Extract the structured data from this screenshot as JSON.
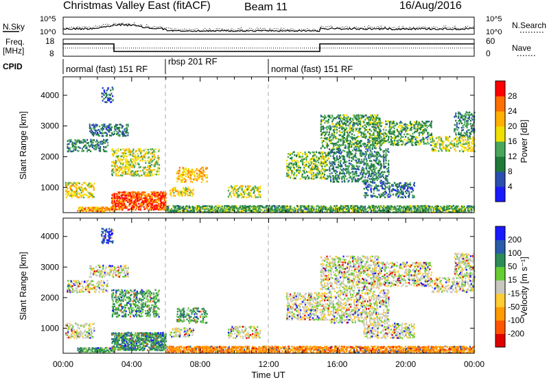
{
  "header": {
    "title": "Christmas Valley East (fitACF)",
    "beam": "Beam 11",
    "date": "16/Aug/2016"
  },
  "top_panels": {
    "nsky": {
      "label": "N.Sky",
      "left_ticks": [
        "10^5",
        "10^0"
      ],
      "right_label": "N.Search",
      "right_ticks": [
        "10^5",
        "10^0"
      ]
    },
    "freq": {
      "label_line1": "Freq.",
      "label_line2": "[MHz]",
      "left_ticks": [
        "18",
        "8"
      ],
      "right_label": "Nave",
      "right_ticks": [
        "60",
        "0"
      ]
    },
    "cpid": {
      "label": "CPID",
      "segments": [
        {
          "start_hour": 0,
          "end_hour": 6,
          "text": "normal (fast) 151 RF"
        },
        {
          "start_hour": 6,
          "end_hour": 12,
          "text": "rbsp 201 RF"
        },
        {
          "start_hour": 12,
          "end_hour": 24,
          "text": "normal (fast) 151 RF"
        }
      ]
    }
  },
  "colors": {
    "power_scale": [
      "#1a1aff",
      "#2a4fb0",
      "#1f7a3a",
      "#4aa65a",
      "#f0e000",
      "#ffb000",
      "#ff7000",
      "#ff0000"
    ],
    "velocity_scale": [
      "#e00000",
      "#ff5500",
      "#ff9a00",
      "#ffcc33",
      "#c8c8c0",
      "#66cc33",
      "#2e8b57",
      "#2a5caa",
      "#1a1aff"
    ]
  },
  "chart_data": [
    {
      "type": "heatmap",
      "title": "",
      "xlabel": "Time UT",
      "ylabel": "Slant Range [km]",
      "x_range_hours": [
        0,
        24
      ],
      "xticks": [
        "00:00",
        "04:00",
        "08:00",
        "12:00",
        "16:00",
        "20:00",
        "00:00"
      ],
      "ylim": [
        180,
        4600
      ],
      "yticks": [
        1000,
        2000,
        3000,
        4000
      ],
      "colorbar": {
        "label": "Power [dB]",
        "ticks": [
          "4",
          "8",
          "12",
          "16",
          "20",
          "24",
          "28"
        ],
        "range": [
          0,
          30
        ]
      },
      "regions": [
        {
          "t0": 0.2,
          "t1": 2.6,
          "r0": 2200,
          "r1": 2600,
          "level": 10
        },
        {
          "t0": 1.5,
          "t1": 3.8,
          "r0": 2700,
          "r1": 3100,
          "level": 8
        },
        {
          "t0": 2.2,
          "t1": 2.9,
          "r0": 3800,
          "r1": 4300,
          "level": 6
        },
        {
          "t0": 2.8,
          "t1": 5.6,
          "r0": 1400,
          "r1": 2300,
          "level": 16
        },
        {
          "t0": 0.1,
          "t1": 1.8,
          "r0": 700,
          "r1": 1200,
          "level": 18
        },
        {
          "t0": 2.8,
          "t1": 6.0,
          "r0": 300,
          "r1": 900,
          "level": 26
        },
        {
          "t0": 0.8,
          "t1": 3.0,
          "r0": 250,
          "r1": 400,
          "level": 22
        },
        {
          "t0": 6.6,
          "t1": 8.4,
          "r0": 1200,
          "r1": 1700,
          "level": 20
        },
        {
          "t0": 6.2,
          "t1": 7.6,
          "r0": 750,
          "r1": 1050,
          "level": 18
        },
        {
          "t0": 9.6,
          "t1": 11.5,
          "r0": 700,
          "r1": 1100,
          "level": 16
        },
        {
          "t0": 6.0,
          "t1": 24.0,
          "r0": 220,
          "r1": 450,
          "level": 12
        },
        {
          "t0": 13.0,
          "t1": 15.5,
          "r0": 1300,
          "r1": 2200,
          "level": 14
        },
        {
          "t0": 15.0,
          "t1": 18.5,
          "r0": 2300,
          "r1": 3400,
          "level": 12
        },
        {
          "t0": 15.5,
          "t1": 19.0,
          "r0": 1200,
          "r1": 2300,
          "level": 10
        },
        {
          "t0": 18.0,
          "t1": 21.5,
          "r0": 2400,
          "r1": 3200,
          "level": 12
        },
        {
          "t0": 21.5,
          "t1": 24.0,
          "r0": 2200,
          "r1": 2700,
          "level": 16
        },
        {
          "t0": 22.8,
          "t1": 24.0,
          "r0": 2700,
          "r1": 3500,
          "level": 10
        },
        {
          "t0": 17.5,
          "t1": 20.5,
          "r0": 700,
          "r1": 1200,
          "level": 8
        }
      ]
    },
    {
      "type": "heatmap",
      "title": "",
      "xlabel": "Time UT",
      "ylabel": "Slant Range [km]",
      "x_range_hours": [
        0,
        24
      ],
      "xticks": [
        "00:00",
        "04:00",
        "08:00",
        "12:00",
        "16:00",
        "20:00",
        "00:00"
      ],
      "ylim": [
        180,
        4600
      ],
      "yticks": [
        1000,
        2000,
        3000,
        4000
      ],
      "colorbar": {
        "label": "Velocity [m s⁻¹]",
        "ticks": [
          "200",
          "100",
          "50",
          "15",
          "-15",
          "-50",
          "-100",
          "-200"
        ],
        "range": [
          -250,
          250
        ]
      },
      "regions": [
        {
          "t0": 0.2,
          "t1": 2.6,
          "r0": 2200,
          "r1": 2600,
          "vel": 0
        },
        {
          "t0": 1.5,
          "t1": 3.8,
          "r0": 2700,
          "r1": 3100,
          "vel": 0
        },
        {
          "t0": 2.2,
          "t1": 2.9,
          "r0": 3800,
          "r1": 4300,
          "vel": 150
        },
        {
          "t0": 2.8,
          "t1": 5.6,
          "r0": 1400,
          "r1": 2300,
          "vel": 40
        },
        {
          "t0": 0.1,
          "t1": 1.8,
          "r0": 700,
          "r1": 1200,
          "vel": 0
        },
        {
          "t0": 2.8,
          "t1": 6.0,
          "r0": 300,
          "r1": 900,
          "vel": 50
        },
        {
          "t0": 0.8,
          "t1": 3.0,
          "r0": 250,
          "r1": 400,
          "vel": 40
        },
        {
          "t0": 6.6,
          "t1": 8.4,
          "r0": 1200,
          "r1": 1700,
          "vel": 40
        },
        {
          "t0": 6.2,
          "t1": 7.6,
          "r0": 750,
          "r1": 1050,
          "vel": 0
        },
        {
          "t0": 9.6,
          "t1": 11.5,
          "r0": 700,
          "r1": 1100,
          "vel": 0
        },
        {
          "t0": 6.0,
          "t1": 24.0,
          "r0": 220,
          "r1": 450,
          "vel": -60
        },
        {
          "t0": 13.0,
          "t1": 15.5,
          "r0": 1300,
          "r1": 2200,
          "vel": 0
        },
        {
          "t0": 15.0,
          "t1": 18.5,
          "r0": 2300,
          "r1": 3400,
          "vel": 0
        },
        {
          "t0": 15.5,
          "t1": 19.0,
          "r0": 1200,
          "r1": 2300,
          "vel": 0
        },
        {
          "t0": 18.0,
          "t1": 21.5,
          "r0": 2400,
          "r1": 3200,
          "vel": 0
        },
        {
          "t0": 21.5,
          "t1": 24.0,
          "r0": 2200,
          "r1": 2700,
          "vel": 0
        },
        {
          "t0": 22.8,
          "t1": 24.0,
          "r0": 2700,
          "r1": 3500,
          "vel": 0
        },
        {
          "t0": 17.5,
          "t1": 20.5,
          "r0": 700,
          "r1": 1200,
          "vel": 0
        }
      ]
    }
  ]
}
